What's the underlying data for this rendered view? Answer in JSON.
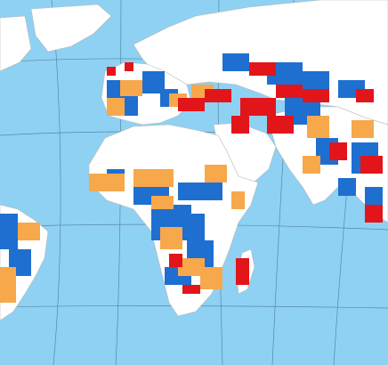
{
  "map": {
    "projection": "world-map-graticule",
    "colors": {
      "ocean": "#8fd1f3",
      "land_no_data": "#ffffff",
      "class_blue": "#1f6fd1",
      "class_orange": "#f7a84a",
      "class_red": "#e2151b",
      "graticule": "#2b4a66",
      "boundary": "#b8b8b8"
    },
    "legend_visible": false,
    "labels_visible": false,
    "classes": [
      {
        "name": "class-blue"
      },
      {
        "name": "class-orange"
      },
      {
        "name": "class-red"
      }
    ]
  }
}
